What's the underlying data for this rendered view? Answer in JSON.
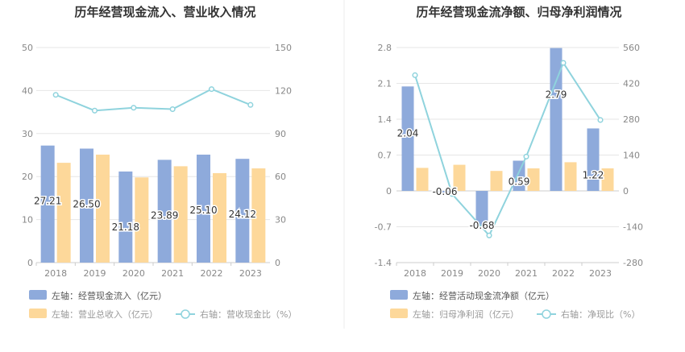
{
  "chart_data": [
    {
      "type": "bar",
      "title": "历年经营现金流入、营业收入情况",
      "categories": [
        "2018",
        "2019",
        "2020",
        "2021",
        "2022",
        "2023"
      ],
      "left_axis": {
        "ticks": [
          "0",
          "10",
          "20",
          "30",
          "40",
          "50"
        ],
        "ylim": [
          0,
          50
        ]
      },
      "right_axis": {
        "ticks": [
          "0",
          "30",
          "60",
          "90",
          "120",
          "150"
        ],
        "ylim": [
          0,
          150
        ]
      },
      "grid": true,
      "legend_position": "bottom-left",
      "series": [
        {
          "name": "左轴：经营现金流入（亿元）",
          "kind": "bar",
          "axis": "left",
          "color": "#8eaadb",
          "values": [
            27.21,
            26.5,
            21.18,
            23.89,
            25.1,
            24.12
          ],
          "labels": [
            "27.21",
            "26.50",
            "21.18",
            "23.89",
            "25.10",
            "24.12"
          ]
        },
        {
          "name": "左轴：营业总收入（亿元）",
          "kind": "bar",
          "axis": "left",
          "color": "#fdd89a",
          "values": [
            23.2,
            25.1,
            19.8,
            22.4,
            20.8,
            21.9
          ]
        },
        {
          "name": "右轴：营收现金比（%）",
          "kind": "line",
          "axis": "right",
          "color": "#8fd3dd",
          "values": [
            117,
            106,
            108,
            107,
            121,
            110
          ]
        }
      ]
    },
    {
      "type": "bar",
      "title": "历年经营现金流净额、归母净利润情况",
      "categories": [
        "2018",
        "2019",
        "2020",
        "2021",
        "2022",
        "2023"
      ],
      "left_axis": {
        "ticks": [
          "-1.4",
          "-0.7",
          "0",
          "0.7",
          "1.4",
          "2.1",
          "2.8"
        ],
        "ylim": [
          -1.4,
          2.8
        ]
      },
      "right_axis": {
        "ticks": [
          "-280",
          "-140",
          "0",
          "140",
          "280",
          "420",
          "560"
        ],
        "ylim": [
          -280,
          560
        ]
      },
      "grid": true,
      "legend_position": "bottom-left",
      "series": [
        {
          "name": "左轴：经营活动现金流净额（亿元）",
          "kind": "bar",
          "axis": "left",
          "color": "#8eaadb",
          "values": [
            2.04,
            -0.06,
            -0.68,
            0.59,
            2.79,
            1.22
          ],
          "labels": [
            "2.04",
            "-0.06",
            "-0.68",
            "0.59",
            "2.79",
            "1.22"
          ]
        },
        {
          "name": "左轴：归母净利润（亿元）",
          "kind": "bar",
          "axis": "left",
          "color": "#fdd89a",
          "values": [
            0.45,
            0.51,
            0.39,
            0.44,
            0.56,
            0.44
          ]
        },
        {
          "name": "右轴：净现比（%）",
          "kind": "line",
          "axis": "right",
          "color": "#8fd3dd",
          "values": [
            452,
            -12,
            -174,
            134,
            500,
            277
          ]
        }
      ]
    }
  ]
}
